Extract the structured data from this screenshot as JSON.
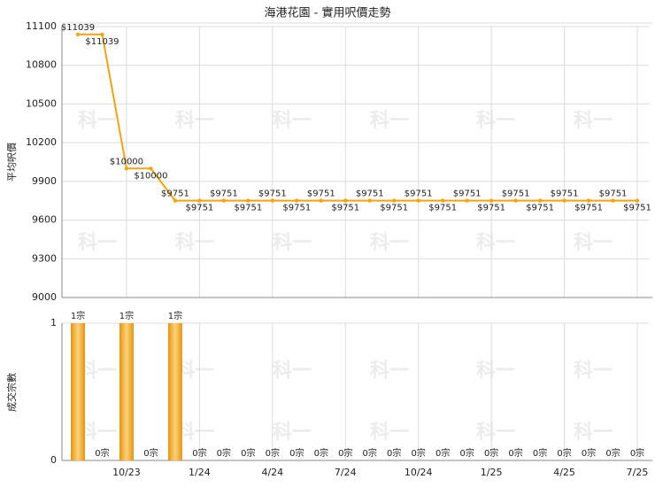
{
  "chart_data": [
    {
      "type": "line",
      "title": "海港花園 - 實用呎價走勢",
      "y_label": "平均呎價",
      "color": "#f5a30f",
      "values": [
        11039,
        11039,
        10000,
        10000,
        9751,
        9751,
        9751,
        9751,
        9751,
        9751,
        9751,
        9751,
        9751,
        9751,
        9751,
        9751,
        9751,
        9751,
        9751,
        9751,
        9751,
        9751,
        9751,
        9751
      ],
      "value_labels": [
        "$11039",
        "$11039",
        "$10000",
        "$10000",
        "$9751",
        "$9751",
        "$9751",
        "$9751",
        "$9751",
        "$9751",
        "$9751",
        "$9751",
        "$9751",
        "$9751",
        "$9751",
        "$9751",
        "$9751",
        "$9751",
        "$9751",
        "$9751",
        "$9751",
        "$9751",
        "$9751",
        "$9751"
      ],
      "ylim": [
        9000,
        11100
      ],
      "yticks": [
        9000,
        9300,
        9600,
        9900,
        10200,
        10500,
        10800,
        11100
      ],
      "grid": true,
      "watermark": "科一"
    },
    {
      "type": "bar",
      "y_label": "成交宗數",
      "color": "#f0a020",
      "categories": [
        null,
        null,
        "10/23",
        null,
        null,
        "1/24",
        null,
        null,
        "4/24",
        null,
        null,
        "7/24",
        null,
        null,
        "10/24",
        null,
        null,
        "1/25",
        null,
        null,
        "4/25",
        null,
        null,
        "7/25"
      ],
      "values": [
        1,
        0,
        1,
        0,
        1,
        0,
        0,
        0,
        0,
        0,
        0,
        0,
        0,
        0,
        0,
        0,
        0,
        0,
        0,
        0,
        0,
        0,
        0,
        0
      ],
      "value_labels": [
        "1宗",
        "0宗",
        "1宗",
        "0宗",
        "1宗",
        "0宗",
        "0宗",
        "0宗",
        "0宗",
        "0宗",
        "0宗",
        "0宗",
        "0宗",
        "0宗",
        "0宗",
        "0宗",
        "0宗",
        "0宗",
        "0宗",
        "0宗",
        "0宗",
        "0宗",
        "0宗",
        "0宗"
      ],
      "ylim": [
        0,
        1
      ],
      "yticks": [
        0,
        1
      ],
      "grid": true,
      "watermark": "科一"
    }
  ]
}
